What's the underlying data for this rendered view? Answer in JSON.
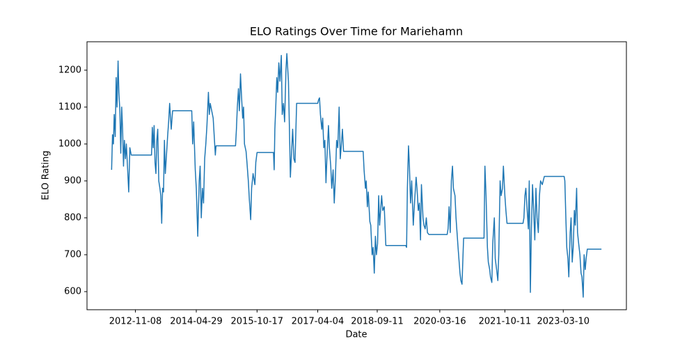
{
  "chart_data": {
    "type": "line",
    "title": "ELO Ratings Over Time for Mariehamn",
    "x_label": "Date",
    "y_label": "ELO Rating",
    "xlim": [
      "2011-09-08",
      "2024-09-17"
    ],
    "xticks": [
      "2012-11-08",
      "2014-04-29",
      "2015-10-17",
      "2017-04-04",
      "2018-09-11",
      "2020-03-16",
      "2021-10-11",
      "2023-03-10"
    ],
    "ylim": [
      551,
      1277
    ],
    "yticks": [
      600,
      700,
      800,
      900,
      1000,
      1100,
      1200
    ],
    "grid": false,
    "series": [
      {
        "color": "#1f77b4",
        "x": [
          "2012-04-12",
          "2012-04-20",
          "2012-04-28",
          "2012-05-05",
          "2012-05-14",
          "2012-05-22",
          "2012-05-30",
          "2012-06-08",
          "2012-06-15",
          "2012-06-24",
          "2012-07-02",
          "2012-07-10",
          "2012-07-18",
          "2012-07-26",
          "2012-08-03",
          "2012-08-12",
          "2012-08-20",
          "2012-08-30",
          "2012-09-10",
          "2012-09-20",
          "2012-10-02",
          "2013-03-30",
          "2013-04-06",
          "2013-04-14",
          "2013-04-22",
          "2013-04-30",
          "2013-05-08",
          "2013-05-16",
          "2013-05-24",
          "2013-06-02",
          "2013-06-12",
          "2013-06-20",
          "2013-06-28",
          "2013-07-06",
          "2013-07-14",
          "2013-07-22",
          "2013-07-30",
          "2013-08-19",
          "2013-08-28",
          "2013-09-06",
          "2013-09-20",
          "2013-10-02",
          "2014-03-20",
          "2014-03-28",
          "2014-04-06",
          "2014-04-20",
          "2014-04-29",
          "2014-05-12",
          "2014-05-25",
          "2014-06-02",
          "2014-06-12",
          "2014-06-22",
          "2014-07-02",
          "2014-07-12",
          "2014-07-22",
          "2014-08-01",
          "2014-08-14",
          "2014-08-22",
          "2014-08-30",
          "2014-09-25",
          "2014-10-14",
          "2014-10-20",
          "2015-04-10",
          "2015-04-18",
          "2015-04-26",
          "2015-05-06",
          "2015-05-14",
          "2015-05-24",
          "2015-06-02",
          "2015-06-12",
          "2015-06-20",
          "2015-06-28",
          "2015-07-12",
          "2015-07-20",
          "2015-08-01",
          "2015-08-10",
          "2015-08-22",
          "2015-08-30",
          "2015-09-12",
          "2015-09-28",
          "2015-10-06",
          "2015-10-17",
          "2016-03-10",
          "2016-03-16",
          "2016-03-22",
          "2016-03-30",
          "2016-04-08",
          "2016-04-16",
          "2016-04-26",
          "2016-05-06",
          "2016-05-18",
          "2016-05-26",
          "2016-06-06",
          "2016-06-16",
          "2016-06-28",
          "2016-07-06",
          "2016-07-20",
          "2016-07-28",
          "2016-08-06",
          "2016-08-26",
          "2016-09-06",
          "2016-09-16",
          "2016-09-30",
          "2017-04-04",
          "2017-04-12",
          "2017-04-20",
          "2017-04-28",
          "2017-05-10",
          "2017-05-18",
          "2017-05-28",
          "2017-06-06",
          "2017-06-16",
          "2017-06-24",
          "2017-07-08",
          "2017-07-16",
          "2017-07-28",
          "2017-08-06",
          "2017-08-18",
          "2017-08-28",
          "2017-09-06",
          "2017-09-18",
          "2017-09-28",
          "2017-10-10",
          "2017-10-20",
          "2017-10-30",
          "2017-11-08",
          "2017-11-18",
          "2018-05-10",
          "2018-05-18",
          "2018-05-30",
          "2018-06-06",
          "2018-06-16",
          "2018-06-24",
          "2018-07-08",
          "2018-07-16",
          "2018-07-28",
          "2018-08-06",
          "2018-08-16",
          "2018-08-26",
          "2018-09-04",
          "2018-09-14",
          "2018-09-24",
          "2018-10-02",
          "2018-10-20",
          "2018-10-30",
          "2018-11-12",
          "2018-11-26",
          "2019-05-20",
          "2019-05-28",
          "2019-06-04",
          "2019-06-14",
          "2019-06-22",
          "2019-07-02",
          "2019-07-12",
          "2019-07-26",
          "2019-08-04",
          "2019-08-20",
          "2019-08-28",
          "2019-09-08",
          "2019-09-18",
          "2019-09-28",
          "2019-10-06",
          "2019-10-20",
          "2019-10-28",
          "2019-11-08",
          "2019-11-18",
          "2019-11-28",
          "2019-12-10",
          "2020-05-20",
          "2020-05-28",
          "2020-06-06",
          "2020-06-16",
          "2020-06-26",
          "2020-07-06",
          "2020-07-14",
          "2020-07-28",
          "2020-08-06",
          "2020-08-24",
          "2020-09-10",
          "2020-09-18",
          "2020-09-28",
          "2020-10-12",
          "2021-04-10",
          "2021-04-18",
          "2021-04-28",
          "2021-05-10",
          "2021-05-18",
          "2021-05-30",
          "2021-06-06",
          "2021-06-18",
          "2021-06-26",
          "2021-07-10",
          "2021-07-18",
          "2021-07-30",
          "2021-08-10",
          "2021-08-18",
          "2021-08-30",
          "2021-09-08",
          "2021-09-20",
          "2021-09-28",
          "2021-10-11",
          "2021-10-20",
          "2021-10-30",
          "2022-03-20",
          "2022-03-28",
          "2022-04-06",
          "2022-04-14",
          "2022-04-24",
          "2022-05-06",
          "2022-05-14",
          "2022-05-24",
          "2022-06-02",
          "2022-06-12",
          "2022-06-22",
          "2022-07-02",
          "2022-07-12",
          "2022-07-22",
          "2022-08-02",
          "2022-08-12",
          "2022-08-22",
          "2022-09-06",
          "2022-09-24",
          "2023-03-18",
          "2023-03-24",
          "2023-04-02",
          "2023-04-10",
          "2023-04-20",
          "2023-04-28",
          "2023-05-10",
          "2023-05-18",
          "2023-05-28",
          "2023-06-06",
          "2023-06-16",
          "2023-06-24",
          "2023-07-06",
          "2023-07-14",
          "2023-07-24",
          "2023-08-04",
          "2023-08-14",
          "2023-08-22",
          "2023-09-02",
          "2023-09-10",
          "2023-09-20",
          "2023-09-28",
          "2023-10-08",
          "2024-02-10"
        ],
        "values": [
          930,
          1025,
          1000,
          1080,
          1020,
          1180,
          1100,
          1225,
          1140,
          1090,
          975,
          1100,
          1040,
          940,
          1010,
          960,
          1000,
          940,
          870,
          990,
          970,
          970,
          1045,
          990,
          1050,
          950,
          920,
          1010,
          1040,
          900,
          880,
          860,
          785,
          880,
          870,
          1010,
          920,
          1020,
          1060,
          1110,
          1040,
          1090,
          1090,
          1000,
          1060,
          930,
          880,
          750,
          900,
          940,
          800,
          880,
          840,
          960,
          1000,
          1050,
          1140,
          1080,
          1110,
          1070,
          970,
          995,
          995,
          1040,
          1100,
          1150,
          1090,
          1190,
          1130,
          1070,
          1100,
          1000,
          980,
          950,
          900,
          850,
          795,
          880,
          920,
          890,
          950,
          977,
          977,
          930,
          1040,
          1100,
          1180,
          1140,
          1220,
          1170,
          1240,
          1080,
          1110,
          1060,
          1200,
          1245,
          1170,
          1050,
          910,
          1040,
          960,
          950,
          1110,
          1110,
          1120,
          1125,
          1080,
          1040,
          1070,
          990,
          1010,
          895,
          960,
          1050,
          990,
          940,
          880,
          930,
          840,
          900,
          1010,
          990,
          1100,
          960,
          1000,
          1040,
          980,
          980,
          930,
          880,
          900,
          830,
          870,
          790,
          780,
          700,
          720,
          650,
          750,
          700,
          730,
          860,
          780,
          860,
          820,
          830,
          725,
          725,
          720,
          880,
          995,
          940,
          840,
          900,
          780,
          830,
          910,
          880,
          820,
          840,
          740,
          890,
          800,
          780,
          770,
          800,
          760,
          755,
          755,
          770,
          830,
          760,
          900,
          940,
          880,
          860,
          800,
          720,
          650,
          630,
          620,
          745,
          745,
          940,
          860,
          720,
          680,
          660,
          640,
          625,
          730,
          800,
          690,
          660,
          630,
          700,
          900,
          860,
          880,
          940,
          860,
          820,
          785,
          785,
          800,
          860,
          880,
          830,
          770,
          900,
          598,
          770,
          890,
          820,
          740,
          880,
          800,
          760,
          860,
          900,
          890,
          912,
          912,
          900,
          800,
          720,
          690,
          640,
          760,
          800,
          680,
          720,
          820,
          780,
          880,
          760,
          730,
          700,
          650,
          640,
          585,
          700,
          660,
          690,
          715,
          715
        ]
      }
    ]
  }
}
